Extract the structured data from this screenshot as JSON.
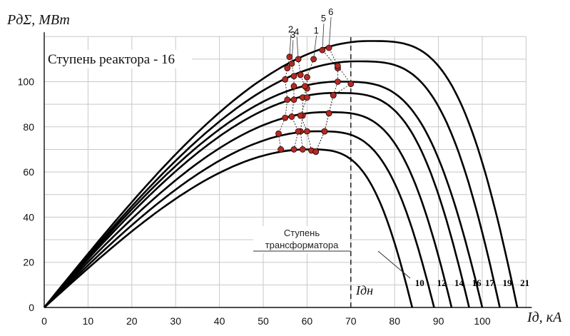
{
  "chart_data": {
    "type": "line",
    "ylabel": "PдΣ, МВт",
    "xlabel": "Iд, кА",
    "annotation": "Ступень реактора - 16",
    "callout": [
      "Ступень",
      "трансформатора"
    ],
    "vline_label": "Iдн",
    "vline_x": 70,
    "xlim": [
      0,
      110
    ],
    "ylim": [
      0,
      120
    ],
    "xticks": [
      0,
      10,
      20,
      30,
      40,
      50,
      60,
      70,
      80,
      90,
      100
    ],
    "yticks": [
      0,
      20,
      40,
      60,
      80,
      100
    ],
    "grid": true,
    "series": [
      {
        "name": "10",
        "peak_x": 60,
        "peak_y": 70,
        "end_x": 84
      },
      {
        "name": "12",
        "peak_x": 62,
        "peak_y": 78,
        "end_x": 89
      },
      {
        "name": "14",
        "peak_x": 64,
        "peak_y": 86.5,
        "end_x": 93
      },
      {
        "name": "16",
        "peak_x": 66,
        "peak_y": 95,
        "end_x": 97
      },
      {
        "name": "17",
        "peak_x": 67,
        "peak_y": 100,
        "end_x": 100
      },
      {
        "name": "19",
        "peak_x": 71,
        "peak_y": 109,
        "end_x": 104
      },
      {
        "name": "21",
        "peak_x": 74,
        "peak_y": 118,
        "end_x": 108
      }
    ],
    "marker_groups": [
      {
        "label": "1",
        "points": [
          [
            59,
            70
          ],
          [
            58.5,
            78
          ],
          [
            59,
            85
          ],
          [
            59,
            93
          ],
          [
            60,
            97
          ],
          [
            60,
            102
          ],
          [
            61.5,
            110
          ]
        ]
      },
      {
        "label": "2",
        "points": [
          [
            54,
            70
          ],
          [
            53.5,
            77
          ],
          [
            55,
            84
          ],
          [
            55.5,
            92
          ],
          [
            55,
            101
          ],
          [
            55.5,
            106
          ],
          [
            56,
            111
          ]
        ]
      },
      {
        "label": "3",
        "points": [
          [
            57,
            70
          ],
          [
            58,
            78
          ],
          [
            56.5,
            84.5
          ],
          [
            57,
            92
          ],
          [
            57,
            98
          ],
          [
            57,
            102.5
          ],
          [
            56.5,
            108
          ]
        ]
      },
      {
        "label": "4",
        "points": [
          [
            61,
            69.5
          ],
          [
            60,
            78
          ],
          [
            58.5,
            85
          ],
          [
            60,
            93
          ],
          [
            59.5,
            98
          ],
          [
            58.5,
            103
          ],
          [
            58,
            110
          ]
        ]
      },
      {
        "label": "5",
        "points": [
          [
            62,
            69
          ],
          [
            64,
            78
          ],
          [
            65,
            86
          ],
          [
            66,
            94
          ],
          [
            67,
            100
          ],
          [
            67,
            106
          ],
          [
            63.5,
            114
          ]
        ]
      },
      {
        "label": "6",
        "points": [
          [
            62,
            69
          ],
          [
            64,
            78
          ],
          [
            65,
            86
          ],
          [
            66,
            94
          ],
          [
            70,
            99
          ],
          [
            67,
            107
          ],
          [
            65,
            115
          ]
        ]
      }
    ]
  }
}
